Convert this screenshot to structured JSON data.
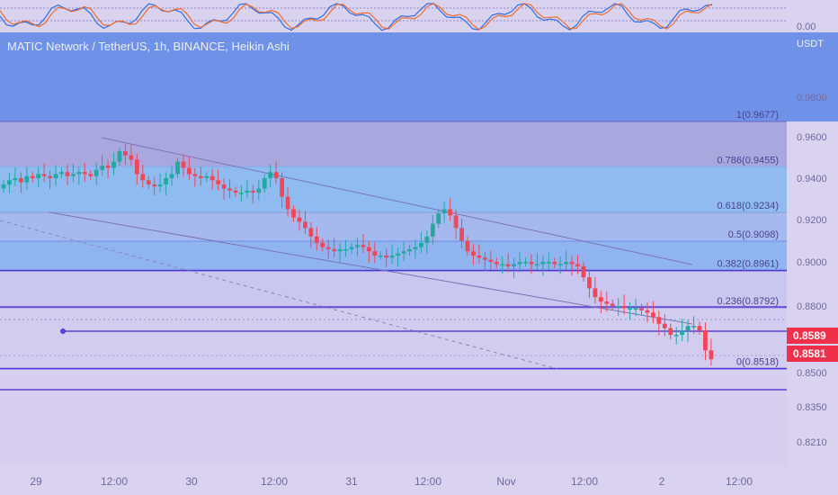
{
  "chart_data": {
    "type": "candlestick",
    "title": "MATIC Network / TetherUS, 1h, BINANCE, Heikin Ashi",
    "currency": "USDT",
    "x_ticks": [
      "29",
      "12:00",
      "30",
      "12:00",
      "31",
      "12:00",
      "Nov",
      "12:00",
      "2",
      "12:00"
    ],
    "y_ticks": [
      0.98,
      0.96,
      0.94,
      0.92,
      0.9,
      0.88,
      0.85,
      0.835,
      0.821
    ],
    "y_tick_labels": [
      "0.9800",
      "0.9600",
      "0.9400",
      "0.9200",
      "0.9000",
      "0.8800",
      "0.8500",
      "0.8350",
      "0.8210"
    ],
    "oscillator_label": "0.00",
    "price_labels": [
      {
        "text": "0.8589",
        "value": 0.8589
      },
      {
        "text": "0.8581",
        "value": 0.8581
      }
    ],
    "fib_levels": [
      {
        "label": "1(0.9677)",
        "value": 0.9677
      },
      {
        "label": "0.786(0.9455)",
        "value": 0.9455
      },
      {
        "label": "0.618(0.9234)",
        "value": 0.9234
      },
      {
        "label": "0.5(0.9098)",
        "value": 0.9098
      },
      {
        "label": "0.382(0.8961)",
        "value": 0.8961
      },
      {
        "label": "0.236(0.8792)",
        "value": 0.8792
      },
      {
        "label": "0(0.8518)",
        "value": 0.8518
      }
    ],
    "candles_close": [
      0.937,
      0.939,
      0.94,
      0.938,
      0.941,
      0.94,
      0.942,
      0.941,
      0.94,
      0.942,
      0.943,
      0.941,
      0.942,
      0.943,
      0.942,
      0.941,
      0.944,
      0.946,
      0.945,
      0.948,
      0.953,
      0.951,
      0.949,
      0.942,
      0.939,
      0.937,
      0.936,
      0.937,
      0.94,
      0.942,
      0.948,
      0.945,
      0.942,
      0.941,
      0.94,
      0.941,
      0.939,
      0.937,
      0.935,
      0.934,
      0.933,
      0.933,
      0.934,
      0.933,
      0.935,
      0.94,
      0.943,
      0.94,
      0.931,
      0.925,
      0.921,
      0.919,
      0.916,
      0.912,
      0.909,
      0.907,
      0.906,
      0.905,
      0.906,
      0.906,
      0.907,
      0.908,
      0.907,
      0.905,
      0.903,
      0.903,
      0.902,
      0.903,
      0.904,
      0.905,
      0.906,
      0.907,
      0.909,
      0.912,
      0.918,
      0.923,
      0.925,
      0.922,
      0.916,
      0.91,
      0.905,
      0.903,
      0.902,
      0.901,
      0.9,
      0.899,
      0.899,
      0.898,
      0.899,
      0.9,
      0.9,
      0.899,
      0.899,
      0.9,
      0.9,
      0.899,
      0.899,
      0.9,
      0.899,
      0.898,
      0.893,
      0.888,
      0.884,
      0.882,
      0.881,
      0.88,
      0.88,
      0.879,
      0.879,
      0.879,
      0.878,
      0.877,
      0.875,
      0.872,
      0.87,
      0.867,
      0.867,
      0.869,
      0.871,
      0.871,
      0.869,
      0.86,
      0.856
    ]
  }
}
